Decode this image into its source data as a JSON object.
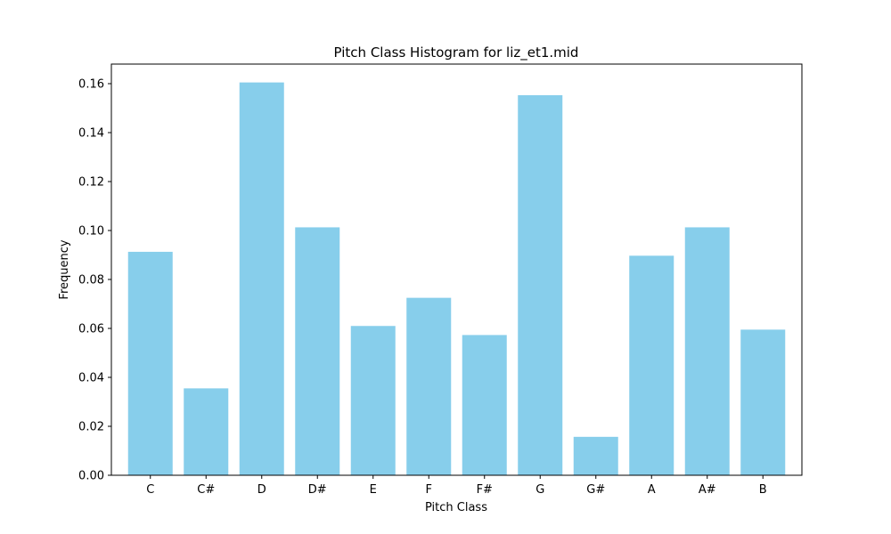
{
  "chart_data": {
    "type": "bar",
    "title": "Pitch Class Histogram for liz_et1.mid",
    "xlabel": "Pitch Class",
    "ylabel": "Frequency",
    "categories": [
      "C",
      "C#",
      "D",
      "D#",
      "E",
      "F",
      "F#",
      "G",
      "G#",
      "A",
      "A#",
      "B"
    ],
    "values": [
      0.0913,
      0.0355,
      0.1605,
      0.1013,
      0.061,
      0.0725,
      0.0573,
      0.1553,
      0.0157,
      0.0897,
      0.1013,
      0.0595
    ],
    "ylim": [
      0,
      0.168
    ],
    "yticks": [
      "0.00",
      "0.02",
      "0.04",
      "0.06",
      "0.08",
      "0.10",
      "0.12",
      "0.14",
      "0.16"
    ],
    "bar_color": "#87ceeb",
    "grid": false,
    "legend": "none"
  }
}
